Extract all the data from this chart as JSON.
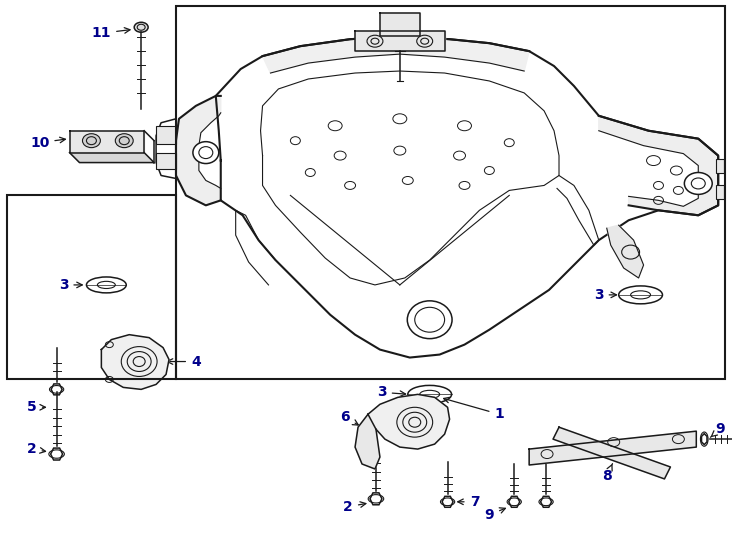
{
  "bg_color": "#ffffff",
  "line_color": "#1a1a1a",
  "label_color": "#00008B",
  "fig_width": 7.34,
  "fig_height": 5.4,
  "dpi": 100
}
